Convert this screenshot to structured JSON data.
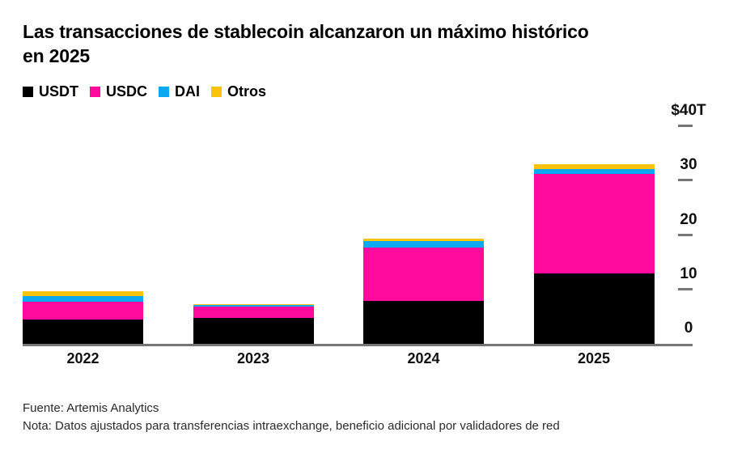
{
  "header": {
    "title": "Las transacciones de stablecoin alcanzaron un máximo histórico en 2025"
  },
  "chart_data": {
    "type": "bar",
    "stacked": true,
    "title": "Las transacciones de stablecoin alcanzaron un máximo histórico en 2025",
    "unit": "trillions of USD",
    "categories": [
      "2022",
      "2023",
      "2024",
      "2025"
    ],
    "series": [
      {
        "name": "USDT",
        "color": "#000000",
        "values": [
          4.4,
          4.7,
          7.9,
          12.9
        ]
      },
      {
        "name": "USDC",
        "color": "#FF0A9C",
        "values": [
          3.4,
          2.2,
          9.8,
          18.3
        ]
      },
      {
        "name": "DAI",
        "color": "#0CA8F2",
        "values": [
          1.0,
          0.2,
          1.2,
          0.9
        ]
      },
      {
        "name": "Otros",
        "color": "#FBC30E",
        "values": [
          0.9,
          0.2,
          0.5,
          0.9
        ]
      }
    ],
    "totals": [
      9.7,
      7.3,
      19.4,
      33.0
    ],
    "ylim": [
      0,
      40
    ],
    "y_ticks": [
      {
        "value": 40,
        "label": "$40T"
      },
      {
        "value": 30,
        "label": "30"
      },
      {
        "value": 20,
        "label": "20"
      },
      {
        "value": 10,
        "label": "10"
      },
      {
        "value": 0,
        "label": "0"
      }
    ],
    "grid": false,
    "legend_position": "top-left",
    "axis_color": "#767676"
  },
  "footer": {
    "source": "Fuente: Artemis Analytics",
    "note": "Nota: Datos ajustados para transferencias intraexchange, beneficio adicional por validadores de red"
  }
}
